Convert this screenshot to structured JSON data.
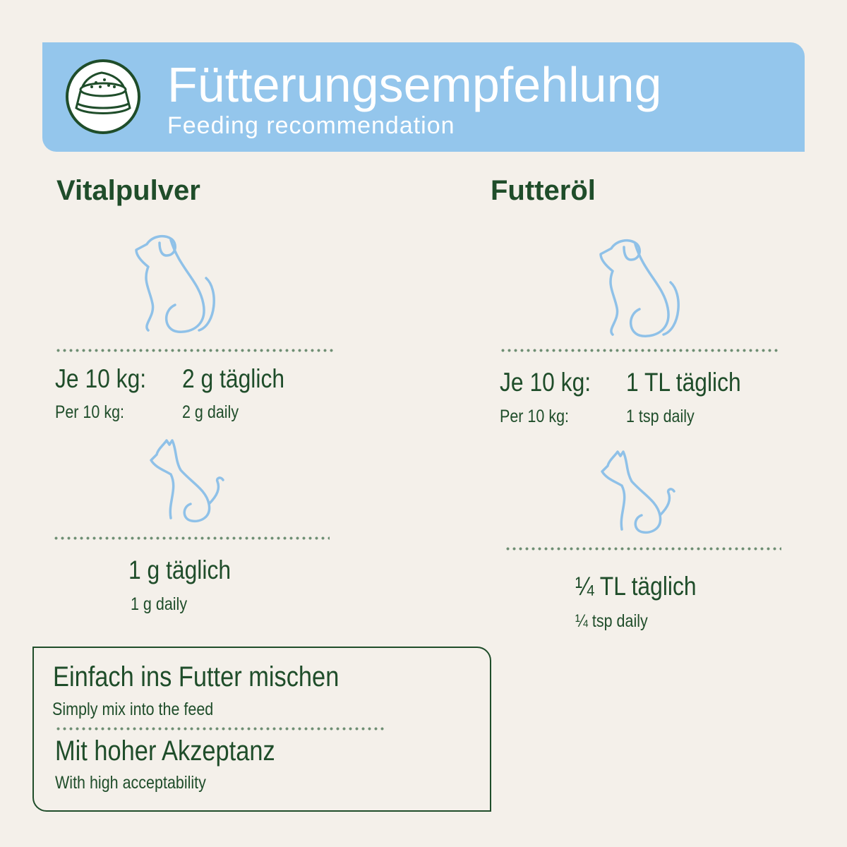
{
  "header": {
    "title": "Fütterungsempfehlung",
    "subtitle": "Feeding recommendation",
    "icon": "food-bowl-icon",
    "background_color": "#94c6ec",
    "text_color": "#ffffff"
  },
  "colors": {
    "accent_green": "#1f4d2a",
    "pet_icon_blue": "#8fc1e8",
    "page_background": "#f4f0ea"
  },
  "products": [
    {
      "name": "Vitalpulver",
      "dog": {
        "label_de": "Je 10 kg:",
        "label_en": "Per 10 kg:",
        "dose_de": "2 g täglich",
        "dose_en": "2 g daily"
      },
      "cat": {
        "dose_de": "1 g täglich",
        "dose_en": "1 g daily"
      }
    },
    {
      "name": "Futteröl",
      "dog": {
        "label_de": "Je 10 kg:",
        "label_en": "Per 10 kg:",
        "dose_de": "1 TL täglich",
        "dose_en": "1 tsp daily"
      },
      "cat": {
        "dose_de": "¼ TL täglich",
        "dose_en": "¼ tsp daily"
      }
    }
  ],
  "features": [
    {
      "de": "Einfach ins Futter mischen",
      "en": "Simply mix into the feed"
    },
    {
      "de": "Mit hoher Akzeptanz",
      "en": "With high acceptability"
    }
  ]
}
